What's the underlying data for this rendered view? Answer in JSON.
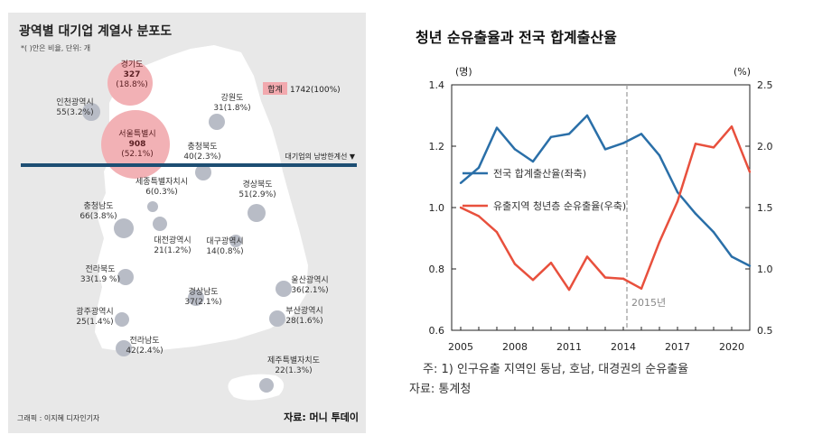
{
  "map_panel": {
    "title": "광역별 대기업 계열사 분포도",
    "subtitle": "*( )안은 비율, 단위: 개",
    "legend_total_label": "합계",
    "legend_total_value": "1742(100%)",
    "divider_label": "대기업의 남방한계선 ▼",
    "credit": "그래픽 : 이지혜 디자인기자",
    "source": "자료: 머니 투데이",
    "regions": [
      {
        "name": "경기도",
        "value": "327",
        "pct": "(18.8%)",
        "highlight": true
      },
      {
        "name": "인천광역시",
        "value": "55",
        "pct": "(3.2%)",
        "highlight": false
      },
      {
        "name": "강원도",
        "value": "31",
        "pct": "(1.8%)",
        "highlight": false
      },
      {
        "name": "서울특별시",
        "value": "908",
        "pct": "(52.1%)",
        "highlight": true
      },
      {
        "name": "충청북도",
        "value": "40",
        "pct": "(2.3%)",
        "highlight": false
      },
      {
        "name": "세종특별자치시",
        "value": "6",
        "pct": "(0.3%)",
        "highlight": false
      },
      {
        "name": "경상북도",
        "value": "51",
        "pct": "(2.9%)",
        "highlight": false
      },
      {
        "name": "충청남도",
        "value": "66",
        "pct": "(3.8%)",
        "highlight": false
      },
      {
        "name": "대전광역시",
        "value": "21",
        "pct": "(1.2%)",
        "highlight": false
      },
      {
        "name": "대구광역시",
        "value": "14",
        "pct": "(0.8%)",
        "highlight": false
      },
      {
        "name": "전라북도",
        "value": "33",
        "pct": "(1.9 %)",
        "highlight": false
      },
      {
        "name": "울산광역시",
        "value": "36",
        "pct": "(2.1%)",
        "highlight": false
      },
      {
        "name": "경상남도",
        "value": "37",
        "pct": "(2.1%)",
        "highlight": false
      },
      {
        "name": "광주광역시",
        "value": "25",
        "pct": "(1.4%)",
        "highlight": false
      },
      {
        "name": "부산광역시",
        "value": "28",
        "pct": "(1.6%)",
        "highlight": false
      },
      {
        "name": "전라남도",
        "value": "42",
        "pct": "(2.4%)",
        "highlight": false
      },
      {
        "name": "제주특별자치도",
        "value": "22",
        "pct": "(1.3%)",
        "highlight": false
      }
    ]
  },
  "right_panel": {
    "title": "청년 순유출율과 전국 합계출산율",
    "note": "주: 1) 인구유출 지역인 동남, 호남, 대경권의 순유출율",
    "source": "자료: 통계청"
  },
  "colors": {
    "bubble_grey": "#b8bcc6",
    "bubble_pink": "#f2b1b5",
    "divider": "#1d4e73",
    "legend_pink": "#f2a9ae",
    "blue_line": "#2a6fa8",
    "red_line": "#e8503d"
  },
  "chart_data": {
    "type": "line",
    "title": "청년 순유출율과 전국 합계출산율",
    "left_unit": "(명)",
    "right_unit": "(%)",
    "x_ticks": [
      "2005",
      "2008",
      "2011",
      "2014",
      "2017",
      "2020"
    ],
    "left_ticks": [
      "1.4",
      "1.2",
      "1.0",
      "0.8",
      "0.6"
    ],
    "right_ticks": [
      "2.5",
      "2.0",
      "1.5",
      "1.0",
      "0.5"
    ],
    "xlim": [
      2004.5,
      2021
    ],
    "ylim_left": [
      0.6,
      1.4
    ],
    "ylim_right": [
      0.5,
      2.5
    ],
    "reference_year": 2014.5,
    "reference_label": "2015년",
    "series": [
      {
        "name": "전국 합계출산율(좌축)",
        "axis": "left",
        "x": [
          2005,
          2006,
          2007,
          2008,
          2009,
          2010,
          2011,
          2012,
          2013,
          2014,
          2015,
          2016,
          2017,
          2018,
          2019,
          2020,
          2021
        ],
        "values": [
          1.08,
          1.13,
          1.26,
          1.19,
          1.15,
          1.23,
          1.24,
          1.3,
          1.19,
          1.21,
          1.24,
          1.17,
          1.05,
          0.98,
          0.92,
          0.84,
          0.81
        ]
      },
      {
        "name": "유출지역 청년층 순유출율(우축)",
        "axis": "right",
        "x": [
          2005,
          2006,
          2007,
          2008,
          2009,
          2010,
          2011,
          2012,
          2013,
          2014,
          2015,
          2016,
          2017,
          2018,
          2019,
          2020,
          2021
        ],
        "values": [
          1.5,
          1.43,
          1.3,
          1.04,
          0.91,
          1.05,
          0.83,
          1.1,
          0.93,
          0.92,
          0.84,
          1.22,
          1.55,
          2.02,
          1.99,
          2.16,
          1.79
        ]
      }
    ]
  }
}
